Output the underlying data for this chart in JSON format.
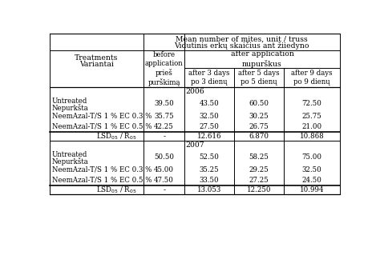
{
  "title_line1": "Mean number of mites, unit / truss",
  "title_line2": "Vidutinis erkų skaičius ant žiiedyno",
  "col_header_before": "before\napplication\nprieš\npurškimą",
  "col_header_after_app": "after application\nnupurškus",
  "col_header_3": "after 3 days\npo 3 dienų",
  "col_header_5": "after 5 days\npo 5 dienų",
  "col_header_9": "after 9 days\npo 9 dienų",
  "treat_label1": "Treatments",
  "treat_label2": "Variantai",
  "year_2006": "2006",
  "year_2007": "2007",
  "rows_2006": [
    {
      "label1": "Untreated",
      "label2": "Nepurkšta",
      "values": [
        "39.50",
        "43.50",
        "60.50",
        "72.50"
      ],
      "lsd": false
    },
    {
      "label1": "NeemAzal-T/S 1 % EC 0.3 %",
      "label2": "",
      "values": [
        "35.75",
        "32.50",
        "30.25",
        "25.75"
      ],
      "lsd": false
    },
    {
      "label1": "NeemAzal-T/S 1 % EC 0.5 %",
      "label2": "",
      "values": [
        "42.25",
        "27.50",
        "26.75",
        "21.00"
      ],
      "lsd": false
    },
    {
      "label1": "LSD",
      "label2": "",
      "values": [
        "-",
        "12.616",
        "6.870",
        "10.868"
      ],
      "lsd": true
    }
  ],
  "rows_2007": [
    {
      "label1": "Untreated",
      "label2": "Nepurkšta",
      "values": [
        "50.50",
        "52.50",
        "58.25",
        "75.00"
      ],
      "lsd": false
    },
    {
      "label1": "NeemAzal-T/S 1 % EC 0.3 %",
      "label2": "",
      "values": [
        "45.00",
        "35.25",
        "29.25",
        "32.50"
      ],
      "lsd": false
    },
    {
      "label1": "NeemAzal-T/S 1 % EC 0.5 %",
      "label2": "",
      "values": [
        "47.50",
        "33.50",
        "27.25",
        "24.50"
      ],
      "lsd": false
    },
    {
      "label1": "LSD",
      "label2": "",
      "values": [
        "-",
        "13.053",
        "12.250",
        "10.994"
      ],
      "lsd": true
    }
  ],
  "bg_color": "#ffffff",
  "text_color": "#000000",
  "font_size": 6.2,
  "lsd_label_05": "05",
  "lsd_label_R": "R"
}
